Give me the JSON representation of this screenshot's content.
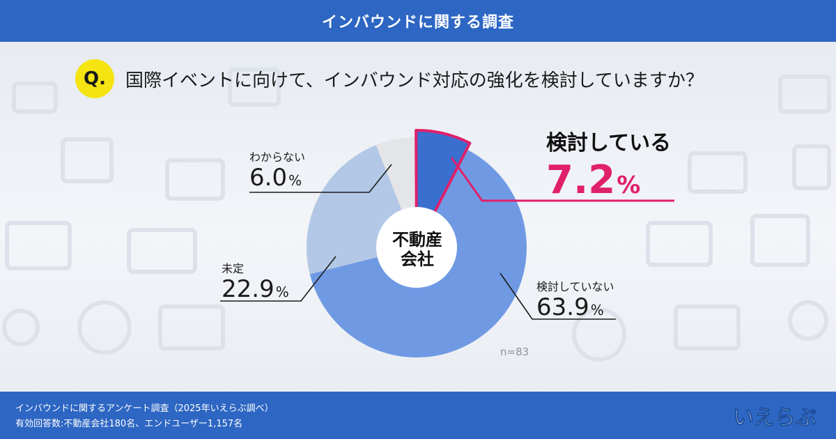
{
  "header": {
    "title": "インバウンドに関する調査"
  },
  "question": {
    "badge": "Q.",
    "text": "国際イベントに向けて、インバウンド対応の強化を検討していますか？"
  },
  "chart_data": {
    "type": "pie",
    "center_label_line1": "不動産",
    "center_label_line2": "会社",
    "n_label": "n=83",
    "slices": [
      {
        "label": "検討している",
        "value": 7.2,
        "value_text": "7.2",
        "unit": "%",
        "color": "#3a6fcf",
        "highlight": true
      },
      {
        "label": "検討していない",
        "value": 63.9,
        "value_text": "63.9",
        "unit": "%",
        "color": "#6f9ae3"
      },
      {
        "label": "未定",
        "value": 22.9,
        "value_text": "22.9",
        "unit": "%",
        "color": "#b3c8e6"
      },
      {
        "label": "わからない",
        "value": 6.0,
        "value_text": "6.0",
        "unit": "%",
        "color": "#e4e5e8"
      }
    ],
    "highlight_color": "#e0206b"
  },
  "footer": {
    "line1": "インバウンドに関するアンケート調査（2025年いえらぶ調べ）",
    "line2": "有効回答数:不動産会社180名、エンドユーザー1,157名"
  },
  "logo": {
    "text": "いえらぶ"
  }
}
